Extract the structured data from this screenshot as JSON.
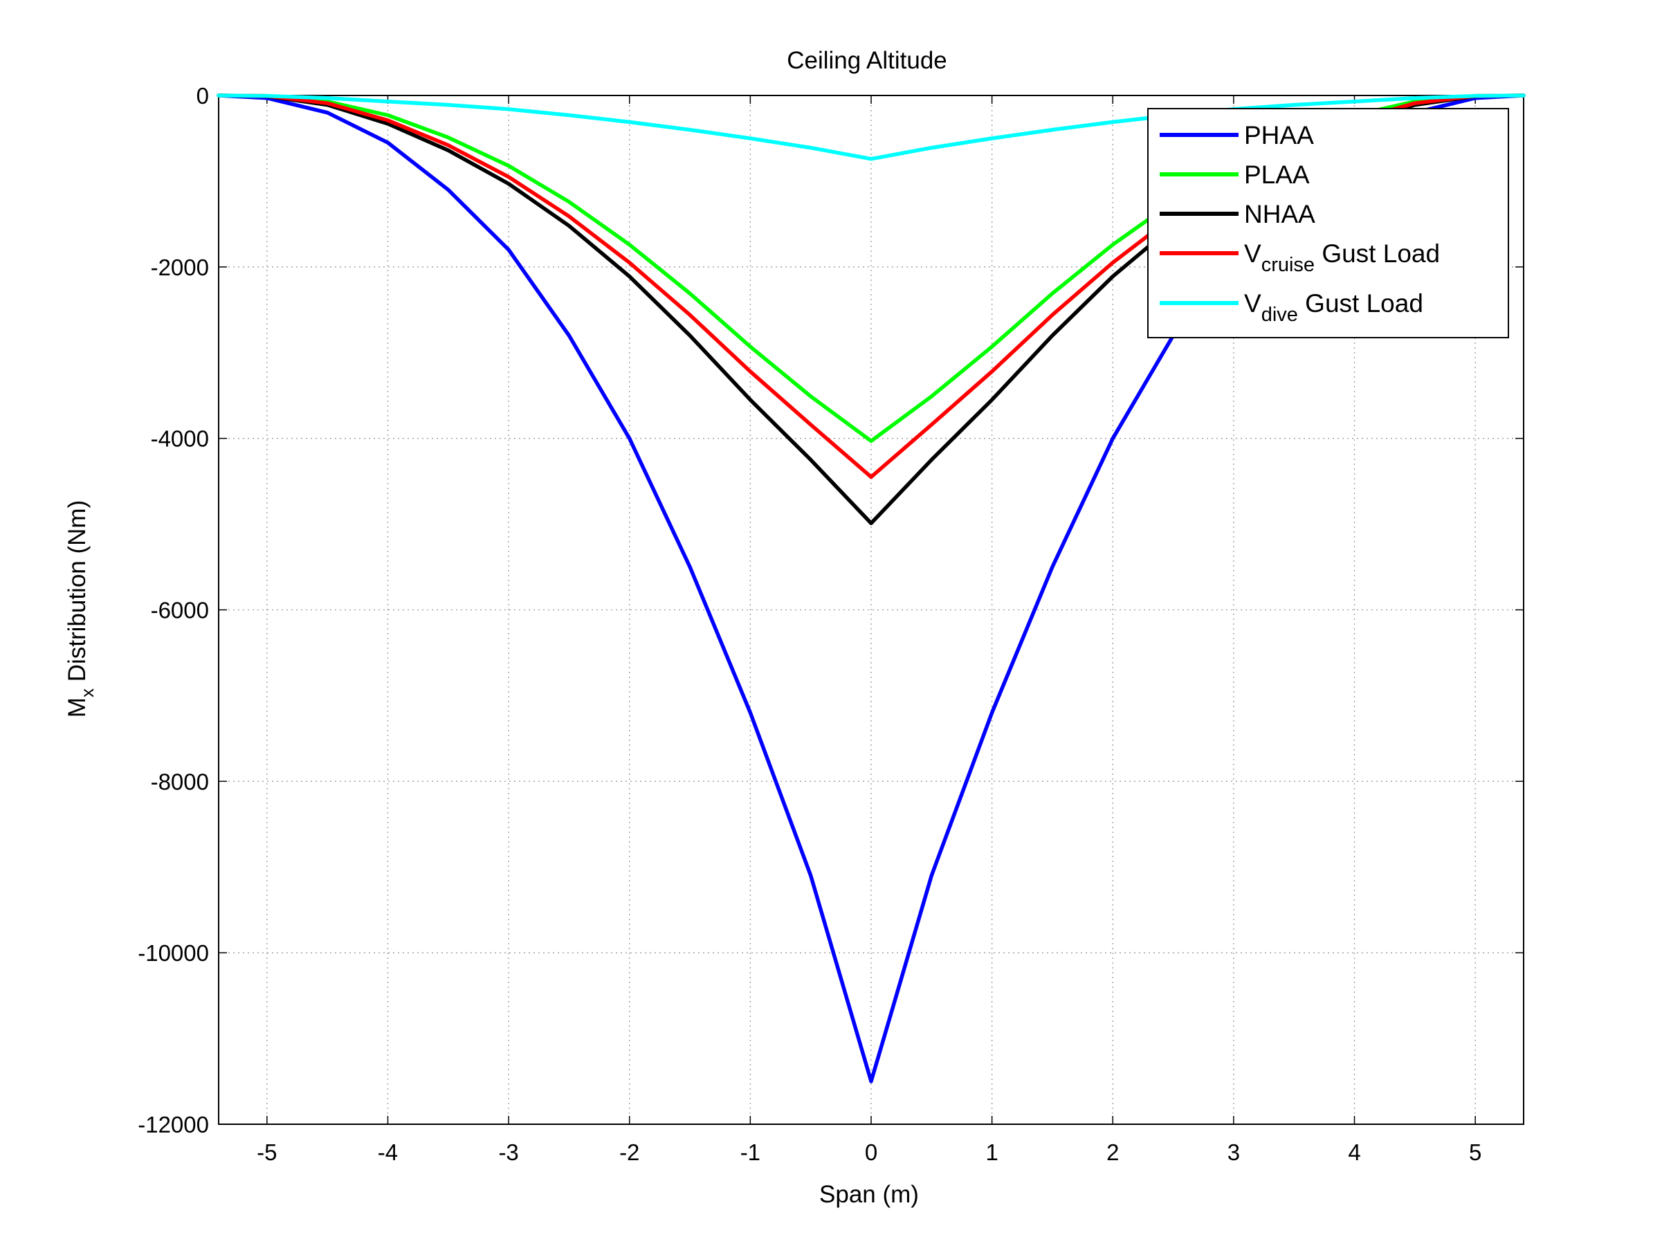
{
  "chart_data": {
    "type": "line",
    "title": "Ceiling Altitude",
    "xlabel": "Span (m)",
    "ylabel_main": "M",
    "ylabel_sub": "x",
    "ylabel_rest": " Distribution (Nm)",
    "xlim": [
      -5.4,
      5.4
    ],
    "ylim": [
      -12000,
      0
    ],
    "xticks": [
      -5,
      -4,
      -3,
      -2,
      -1,
      0,
      1,
      2,
      3,
      4,
      5
    ],
    "xtick_labels": [
      "-5",
      "-4",
      "-3",
      "-2",
      "-1",
      "0",
      "1",
      "2",
      "3",
      "4",
      "5"
    ],
    "yticks": [
      0,
      -2000,
      -4000,
      -6000,
      -8000,
      -10000,
      -12000
    ],
    "ytick_labels": [
      "0",
      "-2000",
      "-4000",
      "-6000",
      "-8000",
      "-10000",
      "-12000"
    ],
    "grid": true,
    "legend_position": "top-right",
    "x": [
      -5.4,
      -5.0,
      -4.5,
      -4.0,
      -3.5,
      -3.0,
      -2.5,
      -2.0,
      -1.5,
      -1.0,
      -0.5,
      0.0,
      0.5,
      1.0,
      1.5,
      2.0,
      2.5,
      3.0,
      3.5,
      4.0,
      4.5,
      5.0,
      5.4
    ],
    "series": [
      {
        "name_main": "PHAA",
        "name_sub": "",
        "name_rest": "",
        "color": "#0000ff",
        "values": [
          0,
          -30,
          -200,
          -550,
          -1100,
          -1800,
          -2800,
          -4000,
          -5500,
          -7200,
          -9100,
          -11500,
          -9100,
          -7200,
          -5500,
          -4000,
          -2800,
          -1800,
          -1100,
          -550,
          -200,
          -30,
          0
        ]
      },
      {
        "name_main": "PLAA",
        "name_sub": "",
        "name_rest": "",
        "color": "#00ff00",
        "values": [
          0,
          -5,
          -70,
          -230,
          -490,
          -820,
          -1240,
          -1740,
          -2310,
          -2930,
          -3510,
          -4030,
          -3510,
          -2930,
          -2310,
          -1740,
          -1240,
          -820,
          -490,
          -230,
          -70,
          -5,
          0
        ]
      },
      {
        "name_main": "NHAA",
        "name_sub": "",
        "name_rest": "",
        "color": "#000000",
        "values": [
          0,
          -8,
          -110,
          -330,
          -640,
          -1030,
          -1520,
          -2110,
          -2800,
          -3550,
          -4250,
          -4990,
          -4250,
          -3550,
          -2800,
          -2110,
          -1520,
          -1030,
          -640,
          -330,
          -110,
          -8,
          0
        ]
      },
      {
        "name_main": "V",
        "name_sub": "cruise",
        "name_rest": " Gust Load",
        "color": "#ff0000",
        "values": [
          0,
          -6,
          -90,
          -290,
          -580,
          -950,
          -1410,
          -1950,
          -2560,
          -3220,
          -3840,
          -4450,
          -3840,
          -3220,
          -2560,
          -1950,
          -1410,
          -950,
          -580,
          -290,
          -90,
          -6,
          0
        ]
      },
      {
        "name_main": "V",
        "name_sub": "dive",
        "name_rest": " Gust Load",
        "color": "#00ffff",
        "values": [
          0,
          -5,
          -30,
          -70,
          -110,
          -160,
          -230,
          -310,
          -400,
          -500,
          -610,
          -740,
          -610,
          -500,
          -400,
          -310,
          -230,
          -160,
          -110,
          -70,
          -30,
          -5,
          0
        ]
      }
    ]
  }
}
